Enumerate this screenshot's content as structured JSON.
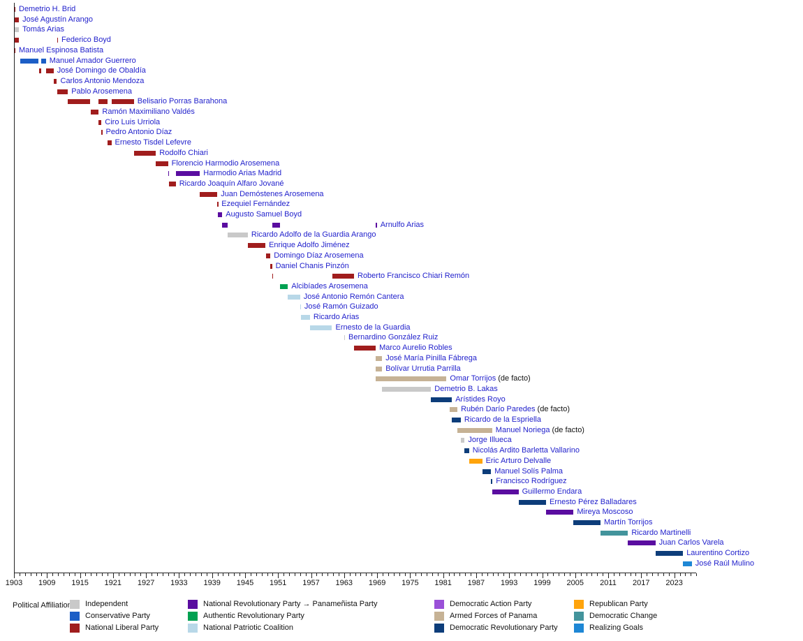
{
  "chart_data": {
    "type": "bar",
    "variant": "gantt-timeline",
    "title": "",
    "legend_title": "Political Affiliation:",
    "x_axis": {
      "min": 1903,
      "max": 2027,
      "major_tick_interval": 6,
      "minor_tick_interval": 1,
      "tick_labels": [
        1903,
        1909,
        1915,
        1921,
        1927,
        1933,
        1939,
        1945,
        1951,
        1957,
        1963,
        1969,
        1975,
        1981,
        1987,
        1993,
        1999,
        2005,
        2011,
        2017,
        2023
      ]
    },
    "parties": {
      "independent": {
        "label": "Independent",
        "color": "#c9c9c9"
      },
      "conservative": {
        "label": "Conservative Party",
        "color": "#1c5ec6"
      },
      "national_liberal": {
        "label": "National Liberal Party",
        "color": "#a01d1d"
      },
      "prn_panamenista": {
        "label": "National Revolutionary Party → Panameñista Party",
        "color": "#5a0da0"
      },
      "authentic_revolutionary": {
        "label": "Authentic Revolutionary Party",
        "color": "#00a151"
      },
      "national_patriotic": {
        "label": "National Patriotic Coalition",
        "color": "#b8d8e8"
      },
      "democratic_action": {
        "label": "Democratic Action Party",
        "color": "#9a50d8"
      },
      "armed_forces": {
        "label": "Armed Forces of Panama",
        "color": "#c6b295"
      },
      "prd": {
        "label": "Democratic Revolutionary Party",
        "color": "#0d3d7a"
      },
      "republican": {
        "label": "Republican Party",
        "color": "#ffa40c"
      },
      "democratic_change": {
        "label": "Democratic Change",
        "color": "#43949c"
      },
      "realizing_goals": {
        "label": "Realizing Goals",
        "color": "#1e87d5"
      }
    },
    "legend_columns": [
      [
        "independent",
        "conservative",
        "national_liberal"
      ],
      [
        "prn_panamenista",
        "authentic_revolutionary",
        "national_patriotic"
      ],
      [
        "democratic_action",
        "armed_forces",
        "prd"
      ],
      [
        "republican",
        "democratic_change",
        "realizing_goals"
      ]
    ],
    "rows": [
      {
        "name": "Demetrio H. Brid",
        "party": "national_liberal",
        "segments": [
          [
            1903.0,
            1903.25
          ]
        ]
      },
      {
        "name": "José Agustín Arango",
        "party": "national_liberal",
        "segments": [
          [
            1903.0,
            1903.9
          ]
        ]
      },
      {
        "name": "Tomás Arias",
        "party": "independent",
        "segments": [
          [
            1903.0,
            1903.9
          ]
        ]
      },
      {
        "name": "Federico Boyd",
        "party": "national_liberal",
        "segments": [
          [
            1903.0,
            1903.9
          ],
          [
            1910.8,
            1911.0
          ]
        ]
      },
      {
        "name": "Manuel Espinosa Batista",
        "party": "national_liberal",
        "segments": [
          [
            1903.0,
            1903.25
          ]
        ]
      },
      {
        "name": "Manuel Amador Guerrero",
        "party": "conservative",
        "segments": [
          [
            1904.1,
            1907.5
          ],
          [
            1907.9,
            1908.8
          ]
        ]
      },
      {
        "name": "José Domingo de Obaldía",
        "party": "national_liberal",
        "segments": [
          [
            1907.5,
            1907.9
          ],
          [
            1908.8,
            1910.2
          ]
        ]
      },
      {
        "name": "Carlos Antonio Mendoza",
        "party": "national_liberal",
        "segments": [
          [
            1910.2,
            1910.8
          ]
        ]
      },
      {
        "name": "Pablo Arosemena",
        "party": "national_liberal",
        "segments": [
          [
            1910.8,
            1912.8
          ]
        ]
      },
      {
        "name": "Belisario Porras Barahona",
        "party": "national_liberal",
        "segments": [
          [
            1912.8,
            1916.9
          ],
          [
            1918.4,
            1920.0
          ],
          [
            1920.7,
            1924.8
          ]
        ]
      },
      {
        "name": "Ramón Maximiliano Valdés",
        "party": "national_liberal",
        "segments": [
          [
            1916.9,
            1918.4
          ]
        ]
      },
      {
        "name": "Ciro Luis Urriola",
        "party": "national_liberal",
        "segments": [
          [
            1918.4,
            1918.9
          ]
        ]
      },
      {
        "name": "Pedro Antonio Díaz",
        "party": "national_liberal",
        "segments": [
          [
            1918.9,
            1919.05
          ]
        ]
      },
      {
        "name": "Ernesto Tisdel Lefevre",
        "party": "national_liberal",
        "segments": [
          [
            1920.0,
            1920.7
          ]
        ]
      },
      {
        "name": "Rodolfo Chiari",
        "party": "national_liberal",
        "segments": [
          [
            1924.8,
            1928.8
          ]
        ]
      },
      {
        "name": "Florencio Harmodio Arosemena",
        "party": "national_liberal",
        "segments": [
          [
            1928.8,
            1931.0
          ]
        ]
      },
      {
        "name": "Harmodio Arias Madrid",
        "party": "prn_panamenista",
        "segments": [
          [
            1931.0,
            1931.2
          ],
          [
            1932.4,
            1936.8
          ]
        ]
      },
      {
        "name": "Ricardo Joaquín Alfaro Jované",
        "party": "national_liberal",
        "segments": [
          [
            1931.2,
            1932.4
          ]
        ]
      },
      {
        "name": "Juan Demóstenes Arosemena",
        "party": "national_liberal",
        "segments": [
          [
            1936.8,
            1939.95
          ]
        ]
      },
      {
        "name": "Ezequiel Fernández",
        "party": "national_liberal",
        "segments": [
          [
            1939.95,
            1940.1
          ]
        ]
      },
      {
        "name": "Augusto Samuel Boyd",
        "party": "prn_panamenista",
        "segments": [
          [
            1940.1,
            1940.85
          ]
        ]
      },
      {
        "name": "Arnulfo Arias",
        "party": "prn_panamenista",
        "segments": [
          [
            1940.85,
            1941.8
          ],
          [
            1949.9,
            1951.4
          ],
          [
            1968.75,
            1968.95
          ]
        ]
      },
      {
        "name": "Ricardo Adolfo de la Guardia Arango",
        "party": "independent",
        "segments": [
          [
            1941.8,
            1945.5
          ]
        ]
      },
      {
        "name": "Enrique Adolfo Jiménez",
        "party": "national_liberal",
        "segments": [
          [
            1945.5,
            1948.7
          ]
        ]
      },
      {
        "name": "Domingo Díaz Arosemena",
        "party": "national_liberal",
        "segments": [
          [
            1948.8,
            1949.6
          ]
        ]
      },
      {
        "name": "Daniel Chanis Pinzón",
        "party": "national_liberal",
        "segments": [
          [
            1949.6,
            1949.9
          ]
        ]
      },
      {
        "name": "Roberto Francisco Chiari Remón",
        "party": "national_liberal",
        "segments": [
          [
            1949.9,
            1950.05
          ],
          [
            1960.8,
            1964.8
          ]
        ]
      },
      {
        "name": "Alcibíades Arosemena",
        "party": "authentic_revolutionary",
        "segments": [
          [
            1951.4,
            1952.8
          ]
        ]
      },
      {
        "name": "José Antonio Remón Cantera",
        "party": "national_patriotic",
        "segments": [
          [
            1952.8,
            1955.0
          ]
        ]
      },
      {
        "name": "José Ramón Guizado",
        "party": "national_patriotic",
        "segments": [
          [
            1955.0,
            1955.15
          ]
        ]
      },
      {
        "name": "Ricardo Arias",
        "party": "national_patriotic",
        "segments": [
          [
            1955.15,
            1956.8
          ]
        ]
      },
      {
        "name": "Ernesto de la Guardia",
        "party": "national_patriotic",
        "segments": [
          [
            1956.8,
            1960.8
          ]
        ]
      },
      {
        "name": "Bernardino González Ruiz",
        "party": "independent",
        "segments": [
          [
            1963.0,
            1963.15
          ]
        ]
      },
      {
        "name": "Marco Aurelio Robles",
        "party": "national_liberal",
        "segments": [
          [
            1964.8,
            1968.75
          ]
        ]
      },
      {
        "name": "José María Pinilla Fábrega",
        "party": "armed_forces",
        "segments": [
          [
            1968.75,
            1969.9
          ]
        ]
      },
      {
        "name": "Bolívar Urrutia Parrilla",
        "party": "armed_forces",
        "segments": [
          [
            1968.75,
            1969.9
          ]
        ]
      },
      {
        "name": "Omar Torrijos",
        "party": "armed_forces",
        "segments": [
          [
            1968.75,
            1981.6
          ]
        ],
        "suffix": "(de facto)"
      },
      {
        "name": "Demetrio B. Lakas",
        "party": "independent",
        "segments": [
          [
            1969.9,
            1978.8
          ]
        ]
      },
      {
        "name": "Arístides Royo",
        "party": "prd",
        "segments": [
          [
            1978.8,
            1982.6
          ]
        ]
      },
      {
        "name": "Rubén Darío Paredes",
        "party": "armed_forces",
        "segments": [
          [
            1982.2,
            1983.6
          ]
        ],
        "suffix": "(de facto)"
      },
      {
        "name": "Ricardo de la Espriella",
        "party": "prd",
        "segments": [
          [
            1982.6,
            1984.2
          ]
        ]
      },
      {
        "name": "Manuel Noriega",
        "party": "armed_forces",
        "segments": [
          [
            1983.6,
            1989.9
          ]
        ],
        "suffix": "(de facto)"
      },
      {
        "name": "Jorge Illueca",
        "party": "independent",
        "segments": [
          [
            1984.2,
            1984.9
          ]
        ]
      },
      {
        "name": "Nicolás Ardito Barletta Vallarino",
        "party": "prd",
        "segments": [
          [
            1984.9,
            1985.7
          ]
        ]
      },
      {
        "name": "Eric Arturo Delvalle",
        "party": "republican",
        "segments": [
          [
            1985.7,
            1988.1
          ]
        ]
      },
      {
        "name": "Manuel Solís Palma",
        "party": "prd",
        "segments": [
          [
            1988.1,
            1989.7
          ]
        ]
      },
      {
        "name": "Francisco Rodríguez",
        "party": "prd",
        "segments": [
          [
            1989.7,
            1989.95
          ]
        ]
      },
      {
        "name": "Guillermo Endara",
        "party": "prn_panamenista",
        "segments": [
          [
            1989.95,
            1994.7
          ]
        ]
      },
      {
        "name": "Ernesto Pérez Balladares",
        "party": "prd",
        "segments": [
          [
            1994.7,
            1999.7
          ]
        ]
      },
      {
        "name": "Mireya Moscoso",
        "party": "prn_panamenista",
        "segments": [
          [
            1999.7,
            2004.7
          ]
        ]
      },
      {
        "name": "Martín Torrijos",
        "party": "prd",
        "segments": [
          [
            2004.7,
            2009.6
          ]
        ]
      },
      {
        "name": "Ricardo Martinelli",
        "party": "democratic_change",
        "segments": [
          [
            2009.6,
            2014.6
          ]
        ]
      },
      {
        "name": "Juan Carlos Varela",
        "party": "prn_panamenista",
        "segments": [
          [
            2014.6,
            2019.6
          ]
        ]
      },
      {
        "name": "Laurentino Cortizo",
        "party": "prd",
        "segments": [
          [
            2019.6,
            2024.6
          ]
        ]
      },
      {
        "name": "José Raúl Mulino",
        "party": "realizing_goals",
        "segments": [
          [
            2024.6,
            2026.2
          ]
        ]
      }
    ]
  }
}
